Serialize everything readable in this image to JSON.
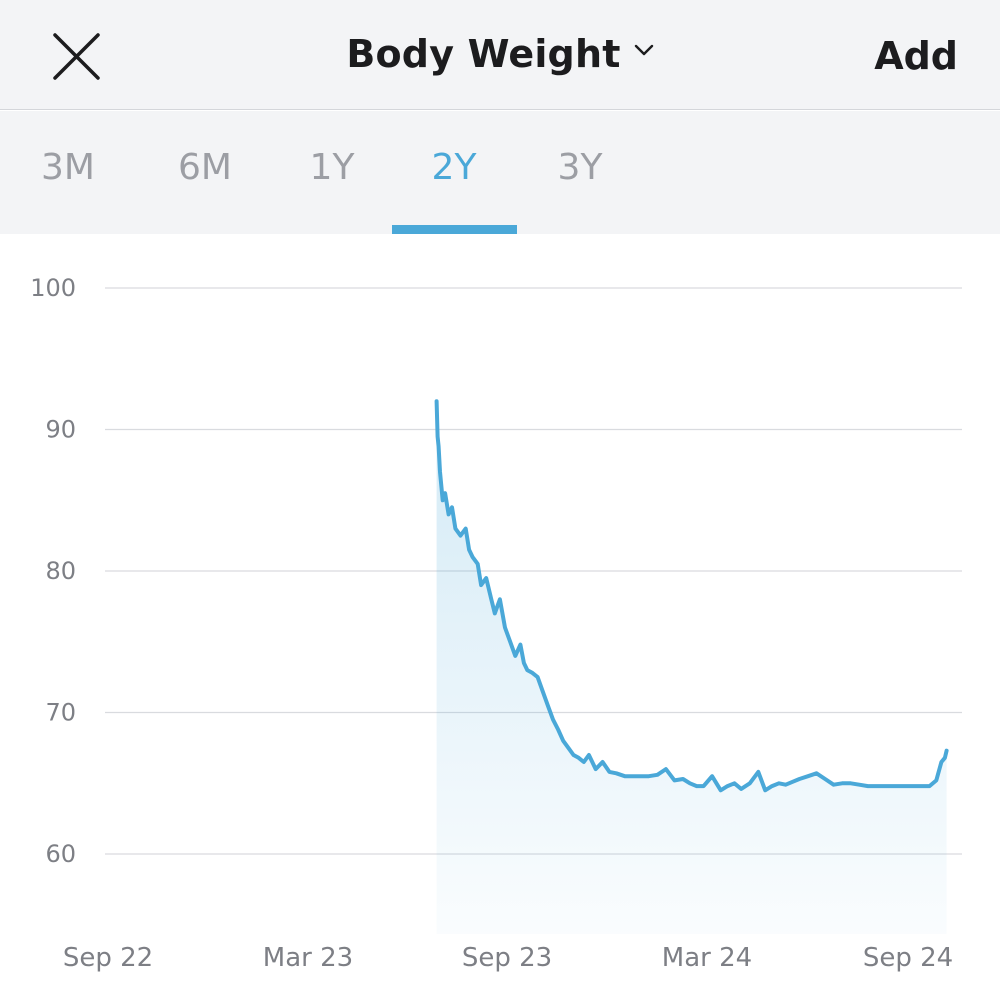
{
  "header": {
    "close_icon": "close-icon",
    "title": "Body Weight",
    "dropdown_icon": "chevron-down-icon",
    "add_label": "Add"
  },
  "tabs": [
    {
      "label": "3M",
      "active": false
    },
    {
      "label": "6M",
      "active": false
    },
    {
      "label": "1Y",
      "active": false
    },
    {
      "label": "2Y",
      "active": true
    },
    {
      "label": "3Y",
      "active": false
    }
  ],
  "colors": {
    "accent": "#4aa8d8",
    "text_primary": "#1c1c1e",
    "text_muted": "#9c9ea4",
    "header_bg": "#f3f4f6"
  },
  "chart_data": {
    "type": "area",
    "title": "",
    "xlabel": "",
    "ylabel": "",
    "y_ticks": [
      100,
      90,
      80,
      70,
      60
    ],
    "ylim": [
      54.4,
      100
    ],
    "x_ticks": [
      "Sep 22",
      "Mar 23",
      "Sep 23",
      "Mar 24",
      "Sep 24"
    ],
    "x_range_months": [
      0,
      24.6
    ],
    "grid": true,
    "series": [
      {
        "x": [
          9.6,
          9.63,
          9.66,
          9.7,
          9.78,
          9.85,
          9.95,
          10.05,
          10.15,
          10.3,
          10.45,
          10.55,
          10.65,
          10.8,
          10.9,
          11.05,
          11.2,
          11.3,
          11.45,
          11.6,
          11.75,
          11.9,
          12.05,
          12.15,
          12.25,
          12.4,
          12.55,
          12.7,
          12.85,
          13.0,
          13.15,
          13.3,
          13.45,
          13.6,
          13.75,
          13.9,
          14.05,
          14.25,
          14.45,
          14.65,
          14.85,
          15.1,
          15.35,
          15.55,
          15.8,
          16.05,
          16.3,
          16.55,
          16.8,
          17.0,
          17.2,
          17.4,
          17.65,
          17.9,
          18.1,
          18.3,
          18.5,
          18.75,
          19.0,
          19.2,
          19.4,
          19.6,
          19.8,
          20.0,
          20.2,
          20.45,
          20.7,
          20.95,
          21.2,
          21.45,
          21.7,
          21.95,
          22.2,
          22.5,
          22.8,
          23.1,
          23.4,
          23.7,
          24.0,
          24.2,
          24.35,
          24.45,
          24.5
        ],
        "values": [
          92.0,
          89.5,
          88.8,
          87.0,
          85.0,
          85.5,
          84.0,
          84.5,
          83.0,
          82.5,
          83.0,
          81.5,
          81.0,
          80.5,
          79.0,
          79.5,
          78.0,
          77.0,
          78.0,
          76.0,
          75.0,
          74.0,
          74.8,
          73.5,
          73.0,
          72.8,
          72.5,
          71.5,
          70.5,
          69.5,
          68.8,
          68.0,
          67.5,
          67.0,
          66.8,
          66.5,
          67.0,
          66.0,
          66.5,
          65.8,
          65.7,
          65.5,
          65.5,
          65.5,
          65.5,
          65.6,
          66.0,
          65.2,
          65.3,
          65.0,
          64.8,
          64.8,
          65.5,
          64.5,
          64.8,
          65.0,
          64.6,
          65.0,
          65.8,
          64.5,
          64.8,
          65.0,
          64.9,
          65.1,
          65.3,
          65.5,
          65.7,
          65.3,
          64.9,
          65.0,
          65.0,
          64.9,
          64.8,
          64.8,
          64.8,
          64.8,
          64.8,
          64.8,
          64.8,
          65.2,
          66.5,
          66.8,
          67.3
        ]
      }
    ]
  }
}
